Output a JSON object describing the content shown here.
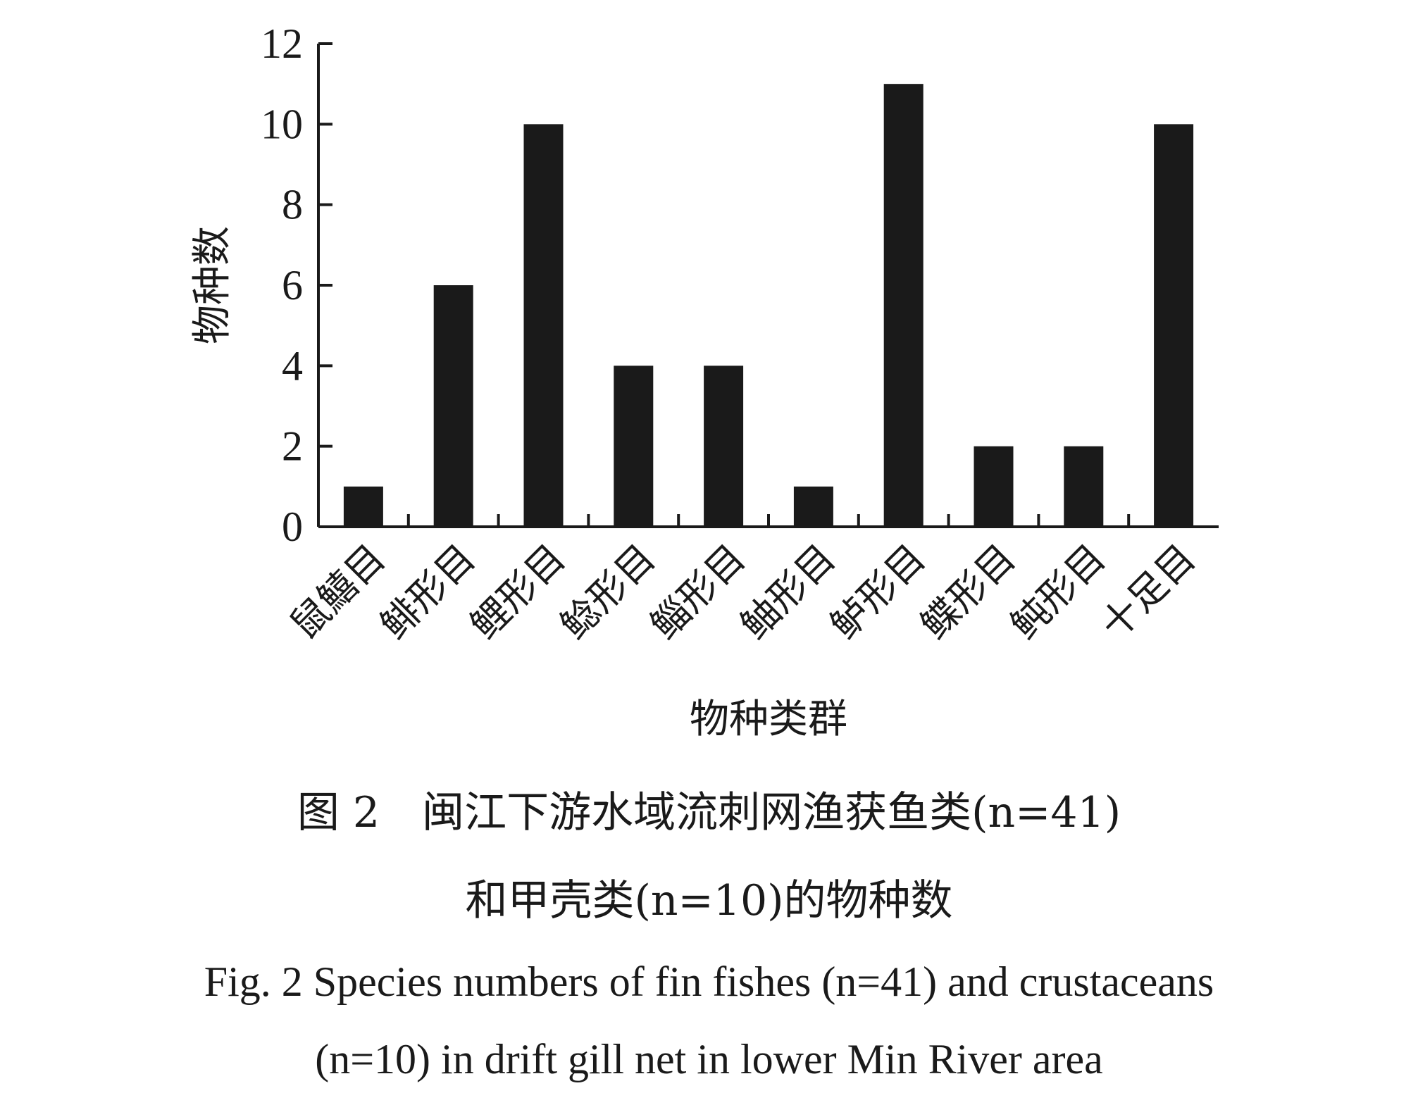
{
  "chart_data": {
    "type": "bar",
    "categories": [
      "鼠鱚目",
      "鲱形目",
      "鲤形目",
      "鲶形目",
      "鲻形目",
      "鲉形目",
      "鲈形目",
      "鲽形目",
      "鲀形目",
      "十足目"
    ],
    "values": [
      1,
      6,
      10,
      4,
      4,
      1,
      11,
      2,
      2,
      10
    ],
    "ylim": [
      0,
      12
    ],
    "yticks": [
      0,
      2,
      4,
      6,
      8,
      10,
      12
    ],
    "xlabel": "物种类群",
    "ylabel": "物种数",
    "bar_color": "#1a1a1a",
    "grid": false,
    "legend": "none"
  },
  "caption": {
    "cn_line1": "图 2　闽江下游水域流刺网渔获鱼类(n=41)",
    "cn_line2": "和甲壳类(n=10)的物种数",
    "en_line1": "Fig. 2   Species numbers of fin fishes (n=41) and crustaceans",
    "en_line2": "(n=10) in drift gill net in lower Min River area"
  }
}
